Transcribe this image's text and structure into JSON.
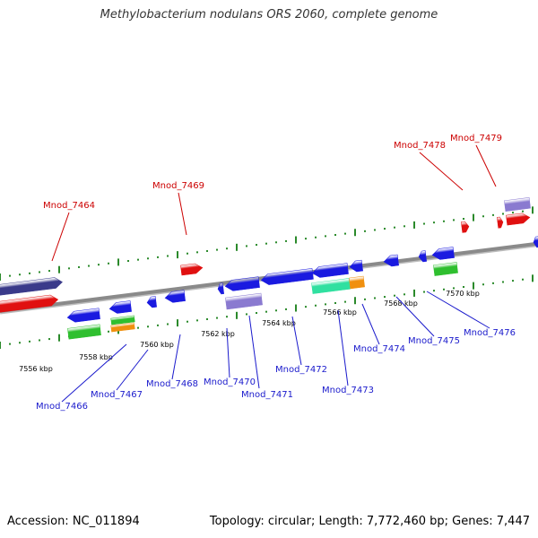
{
  "title": "Methylobacterium nodulans ORS 2060, complete genome",
  "footer": {
    "accession": "Accession: NC_011894",
    "info": "Topology: circular; Length: 7,772,460 bp; Genes: 7,447"
  },
  "colors": {
    "backbone": "#8a8a8a",
    "tick": "#2b8a2b",
    "gene_red": "#e01010",
    "gene_blue": "#1a1ae0",
    "gene_navy": "#3a3a8a",
    "gene_purple": "#8a7ad0",
    "gene_green": "#2fbf2f",
    "gene_orange": "#f0900f",
    "gene_teal": "#30e0a0",
    "label_red": "#cc0000",
    "label_blue": "#1a1acc"
  },
  "position_labels": [
    "7556 kbp",
    "7558 kbp",
    "7560 kbp",
    "7562 kbp",
    "7564 kbp",
    "7566 kbp",
    "7568 kbp",
    "7570 kbp"
  ],
  "gene_labels": {
    "outer": [
      "Mnod_7464",
      "Mnod_7469",
      "Mnod_7478",
      "Mnod_7479"
    ],
    "inner": [
      "Mnod_7466",
      "Mnod_7467",
      "Mnod_7468",
      "Mnod_7470",
      "Mnod_7471",
      "Mnod_7472",
      "Mnod_7473",
      "Mnod_7474",
      "Mnod_7475",
      "Mnod_7476"
    ]
  }
}
